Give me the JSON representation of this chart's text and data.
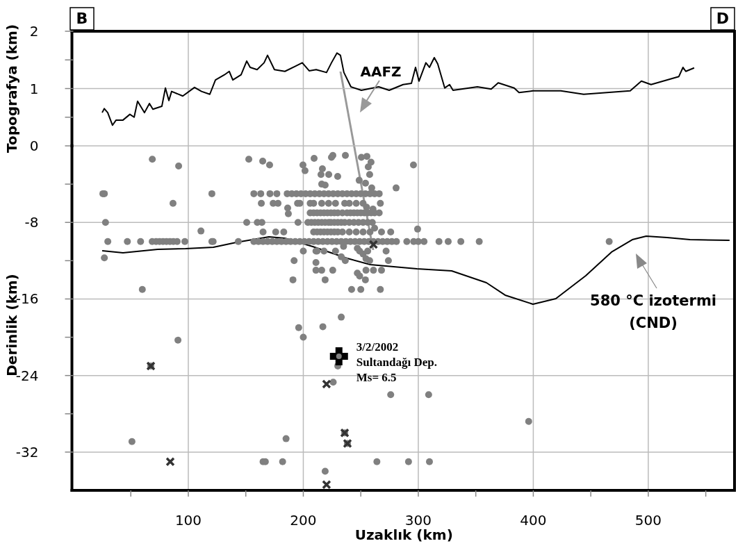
{
  "chart_data": [
    {
      "type": "line",
      "ylabel": "Topografya (km)",
      "xlim": [
        0,
        575
      ],
      "xticks": [
        100,
        200,
        300,
        400,
        500
      ],
      "ylim": [
        0,
        2
      ],
      "yticks": [
        0,
        {
          "value": 0.5,
          "label": null
        },
        1,
        {
          "value": 1.5,
          "label": null
        },
        2
      ],
      "grid": true,
      "tick_labels": "y",
      "series": [
        {
          "color": "#000000",
          "x": [
            25.1,
            26.9,
            29.9,
            34.1,
            37.2,
            43.2,
            49.2,
            52.9,
            55.9,
            61.9,
            66.2,
            69.2,
            77.0,
            80.1,
            83.1,
            85.5,
            95.2,
            105.4,
            111.5,
            118.7,
            123.6,
            131.4,
            135.6,
            138.7,
            145.9,
            150.8,
            153.8,
            159.8,
            165.9,
            168.9,
            174.9,
            184.0,
            193.1,
            199.1,
            205.1,
            211.2,
            220.2,
            224.5,
            229.3,
            232.3,
            235.3,
            241.4,
            250.5,
            265.6,
            274.7,
            286.8,
            294.0,
            297.6,
            300.6,
            306.6,
            309.7,
            313.9,
            316.9,
            323.0,
            327.2,
            330.2,
            351.4,
            363.4,
            369.5,
            383.4,
            387.6,
            399.7,
            423.9,
            443.8,
            484.3,
            494.0,
            502.4,
            526.6,
            530.2,
            532.6,
            539.9
          ],
          "values": [
            0.58,
            0.65,
            0.58,
            0.36,
            0.45,
            0.45,
            0.55,
            0.5,
            0.78,
            0.58,
            0.74,
            0.64,
            0.69,
            1.01,
            0.79,
            0.95,
            0.87,
            1.02,
            0.95,
            0.9,
            1.15,
            1.24,
            1.3,
            1.15,
            1.24,
            1.48,
            1.37,
            1.33,
            1.45,
            1.58,
            1.33,
            1.3,
            1.39,
            1.45,
            1.31,
            1.33,
            1.28,
            1.45,
            1.62,
            1.58,
            1.28,
            1.03,
            0.97,
            1.03,
            0.97,
            1.07,
            1.09,
            1.37,
            1.13,
            1.45,
            1.37,
            1.54,
            1.43,
            1.01,
            1.07,
            0.97,
            1.03,
            0.99,
            1.1,
            1.01,
            0.93,
            0.96,
            0.96,
            0.9,
            0.96,
            1.13,
            1.07,
            1.21,
            1.37,
            1.3,
            1.36
          ]
        }
      ],
      "annotations": [
        "B",
        "D",
        "AAFZ"
      ]
    },
    {
      "type": "scatter",
      "xlabel": "Uzaklık (km)",
      "ylabel": "Derinlik (km)",
      "xlim": [
        0,
        575
      ],
      "xticks": [
        {
          "value": 50,
          "label": null
        },
        100,
        {
          "value": 150,
          "label": null
        },
        200,
        {
          "value": 250,
          "label": null
        },
        300,
        {
          "value": 350,
          "label": null
        },
        400,
        {
          "value": 450,
          "label": null
        },
        500,
        {
          "value": 550,
          "label": null
        }
      ],
      "ylim": [
        -36,
        0
      ],
      "yticks": [
        {
          "value": -4,
          "label": null
        },
        -8,
        {
          "value": -12,
          "label": null
        },
        -16,
        {
          "value": -20,
          "label": null
        },
        -24,
        {
          "value": -28,
          "label": null
        },
        -32
      ],
      "grid": true,
      "series": [
        {
          "type": "line",
          "color": "#000000",
          "x": [
            25.1,
            43.2,
            73.4,
            97.6,
            121.8,
            141.7,
            170.1,
            184.0,
            208.2,
            238.4,
            258.3,
            298.8,
            329.0,
            359.2,
            375.5,
            399.7,
            419.6,
            445.6,
            468.0,
            486.1,
            498.2,
            516.3,
            536.3,
            570.7
          ],
          "values": [
            -10.96,
            -11.18,
            -10.81,
            -10.74,
            -10.6,
            -10.09,
            -9.51,
            -9.65,
            -10.52,
            -11.76,
            -12.41,
            -12.84,
            -13.06,
            -14.3,
            -15.6,
            -16.55,
            -15.97,
            -13.57,
            -11.1,
            -9.8,
            -9.43,
            -9.58,
            -9.8,
            -9.87
          ]
        },
        {
          "marker": "circle",
          "color": "#808080",
          "x": [
            68.7,
            91.6,
            152.6,
            164.7,
            170.7,
            199.7,
            201.5,
            209.4,
            216.6,
            215.4,
            222.1,
            224.5,
            225.7,
            229.9,
            236.6,
            216,
            219,
            250.5,
            255.3,
            258.9,
            256.5,
            257.7,
            248.6,
            254.1,
            259.5,
            295.8,
            280.7,
            25.7,
            27,
            120.5,
            157,
            163,
            171,
            177,
            186,
            190,
            194,
            198,
            202,
            206,
            210,
            214,
            218,
            222,
            226,
            230,
            234,
            238,
            242,
            246,
            250,
            254,
            258,
            262,
            266,
            86.7,
            163.5,
            173.8,
            178,
            195,
            197,
            206,
            209,
            216,
            222,
            228,
            236,
            240,
            246,
            252,
            267,
            186.4,
            187,
            255,
            260.6,
            206,
            209,
            212,
            215,
            218,
            221,
            224,
            227,
            230,
            234,
            238,
            241,
            244,
            247,
            250,
            253,
            256,
            259,
            262,
            266,
            28,
            150.8,
            160,
            164,
            195.4,
            204,
            207,
            210,
            213,
            216,
            219,
            222,
            224,
            227,
            230,
            233,
            236,
            240,
            244,
            248,
            252,
            256,
            260,
            111,
            262,
            299.4,
            165,
            176,
            183,
            209,
            212,
            215,
            218,
            221,
            224,
            227,
            230,
            234,
            240,
            246,
            252,
            258,
            268,
            276,
            30,
            47,
            58.5,
            68.6,
            72,
            75,
            78,
            81,
            84,
            87,
            90.3,
            97,
            120.5,
            121.6,
            143.5,
            157,
            161,
            165,
            169,
            173,
            177,
            181,
            185,
            189,
            193,
            197,
            201,
            205,
            209,
            213,
            217,
            221,
            225,
            229,
            233,
            237,
            241,
            245,
            249,
            253,
            257,
            261,
            265,
            269,
            273,
            277,
            281,
            290,
            296,
            300,
            305,
            318,
            326,
            337,
            353,
            466,
            27,
            60,
            91,
            51,
            200,
            211,
            212,
            218,
            228,
            235,
            247,
            249,
            256,
            272,
            192,
            211,
            233,
            236.5,
            252,
            254.5,
            257.7,
            274,
            211,
            216,
            225.6,
            247,
            249,
            254.5,
            261,
            268,
            191,
            219,
            254,
            242,
            250,
            267,
            233,
            196,
            200,
            217,
            230,
            226,
            276,
            309,
            185,
            167,
            182,
            165,
            219,
            264,
            291.5,
            309.7,
            396,
            67.4,
            236,
            238.4
          ],
          "values": [
            -1.4,
            -2.1,
            -1.4,
            -1.6,
            -2.0,
            -2.0,
            -2.6,
            -1.3,
            -2.4,
            -3.0,
            -3.0,
            -1.2,
            -1.0,
            -3.2,
            -1.0,
            -4.0,
            -4.1,
            -1.2,
            -1.1,
            -1.7,
            -2.2,
            -3.0,
            -3.6,
            -3.9,
            -4.4,
            -2.0,
            -4.4,
            -5,
            -5,
            -5,
            -5,
            -5,
            -5,
            -5,
            -5,
            -5,
            -5,
            -5,
            -5,
            -5,
            -5,
            -5,
            -5,
            -5,
            -5,
            -5,
            -5,
            -5,
            -5,
            -5,
            -5,
            -5,
            -5,
            -5,
            -5,
            -6,
            -6,
            -6,
            -6,
            -6,
            -6,
            -6,
            -6,
            -6,
            -6,
            -6,
            -6,
            -6,
            -6,
            -6,
            -6,
            -6.5,
            -7.1,
            -6.4,
            -6.6,
            -7,
            -7,
            -7,
            -7,
            -7,
            -7,
            -7,
            -7,
            -7,
            -7,
            -7,
            -7,
            -7,
            -7,
            -7,
            -7,
            -7,
            -7,
            -7,
            -7,
            -8,
            -8,
            -8,
            -8,
            -8,
            -8,
            -8,
            -8,
            -8,
            -8,
            -8,
            -8,
            -8,
            -8,
            -8,
            -8,
            -8,
            -8,
            -8,
            -8,
            -8,
            -8,
            -8,
            -8.9,
            -8.6,
            -8.7,
            -9,
            -9,
            -9,
            -9,
            -9,
            -9,
            -9,
            -9,
            -9,
            -9,
            -9,
            -9,
            -9,
            -9,
            -9,
            -9,
            -9,
            -9,
            -10,
            -10,
            -10,
            -10,
            -10,
            -10,
            -10,
            -10,
            -10,
            -10,
            -10,
            -10,
            -10,
            -10,
            -10,
            -10,
            -10,
            -10,
            -10,
            -10,
            -10,
            -10,
            -10,
            -10,
            -10,
            -10,
            -10,
            -10,
            -10,
            -10,
            -10,
            -10,
            -10,
            -10,
            -10,
            -10,
            -10,
            -10,
            -10,
            -10,
            -10,
            -10,
            -10,
            -10,
            -10,
            -10,
            -10,
            -10,
            -10,
            -10,
            -10,
            -10,
            -10,
            -10,
            -10,
            -10,
            -11.7,
            -15,
            -20.3,
            -30.9,
            -11,
            -11,
            -11,
            -11,
            -11,
            -10.5,
            -10.7,
            -11,
            -11,
            -11,
            -12,
            -12.2,
            -11.6,
            -12,
            -11.3,
            -11.8,
            -12,
            -12,
            -13,
            -13,
            -13,
            -13.3,
            -13.6,
            -13,
            -13,
            -13,
            -14,
            -14,
            -14,
            -15,
            -15,
            -15,
            -17.9,
            -19,
            -20,
            -18.9,
            -23,
            -24.7,
            -26,
            -26,
            -30.6,
            -33,
            -33,
            -33,
            -34,
            -33,
            -33,
            -33,
            -28.8,
            -23,
            -30,
            -31.1
          ]
        },
        {
          "marker": "cross",
          "color": "#333333",
          "x": [
            67.4,
            84.3,
            220.2,
            236,
            238.4,
            220.2,
            261
          ],
          "values": [
            -23,
            -33,
            -24.9,
            -30,
            -31.1,
            -35.4,
            -10.3
          ]
        }
      ],
      "annotations": [
        "580 °C izotermi\n(CND)",
        {
          "text": "3/2/2002\nSultandağı Dep.\nMs= 6.5",
          "x": 231,
          "y": -22
        }
      ]
    }
  ]
}
